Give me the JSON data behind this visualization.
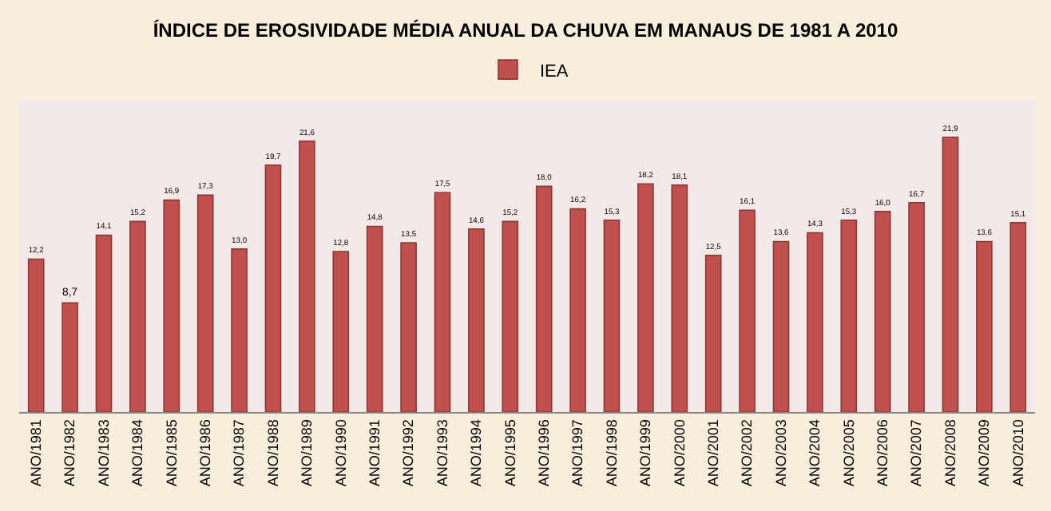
{
  "chart_data": {
    "type": "bar",
    "title": "ÍNDICE DE EROSIVIDADE MÉDIA ANUAL DA CHUVA EM MANAUS DE 1981 A 2010",
    "categories": [
      "ANO/1981",
      "ANO/1982",
      "ANO/1983",
      "ANO/1984",
      "ANO/1985",
      "ANO/1986",
      "ANO/1987",
      "ANO/1988",
      "ANO/1989",
      "ANO/1990",
      "ANO/1991",
      "ANO/1992",
      "ANO/1993",
      "ANO/1994",
      "ANO/1995",
      "ANO/1996",
      "ANO/1997",
      "ANO/1998",
      "ANO/1999",
      "ANO/2000",
      "ANO/2001",
      "ANO/2002",
      "ANO/2003",
      "ANO/2004",
      "ANO/2005",
      "ANO/2006",
      "ANO/2007",
      "ANO/2008",
      "ANO/2009",
      "ANO/2010"
    ],
    "series": [
      {
        "name": "IEA",
        "color": "#c0504d",
        "values": [
          12.2,
          8.7,
          14.1,
          15.2,
          16.9,
          17.3,
          13.0,
          19.7,
          21.6,
          12.8,
          14.8,
          13.5,
          17.5,
          14.6,
          15.2,
          18.0,
          16.2,
          15.3,
          18.2,
          18.1,
          12.5,
          16.1,
          13.6,
          14.3,
          15.3,
          16.0,
          16.7,
          21.9,
          13.6,
          15.1
        ],
        "value_labels": [
          "12,2",
          "8,7",
          "14,1",
          "15,2",
          "16,9",
          "17,3",
          "13,0",
          "19,7",
          "21,6",
          "12,8",
          "14,8",
          "13,5",
          "17,5",
          "14,6",
          "15,2",
          "18,0",
          "16,2",
          "15,3",
          "18,2",
          "18,1",
          "12,5",
          "16,1",
          "13,6",
          "14,3",
          "15,3",
          "16,0",
          "16,7",
          "21,9",
          "13,6",
          "15,1"
        ]
      }
    ],
    "legend": "top",
    "grid": false,
    "tick_labels": "x"
  }
}
